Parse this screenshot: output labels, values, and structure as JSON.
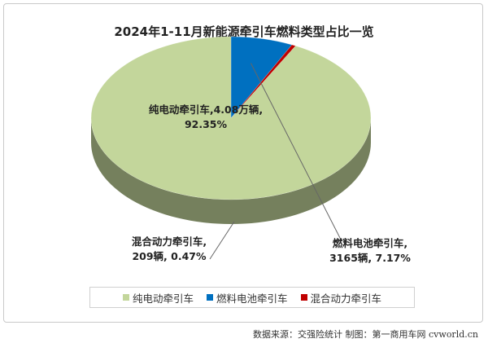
{
  "chart_data": {
    "type": "pie",
    "title": "2024年1-11月新能源牵引车燃料类型占比一览",
    "slices": [
      {
        "name": "纯电动牵引车",
        "label_line1": "纯电动牵引车,4.08万辆,",
        "label_line2": "92.35%",
        "value": 92.35,
        "color": "#c3d69b"
      },
      {
        "name": "燃料电池牵引车",
        "label_line1": "燃料电池牵引车,",
        "label_line2": "3165辆, 7.17%",
        "value": 7.17,
        "color": "#0070c0"
      },
      {
        "name": "混合动力牵引车",
        "label_line1": "混合动力牵引车,",
        "label_line2": "209辆, 0.47%",
        "value": 0.47,
        "color": "#c00000"
      }
    ],
    "legend": [
      "纯电动牵引车",
      "燃料电池牵引车",
      "混合动力牵引车"
    ],
    "legend_position": "bottom",
    "style": "3d"
  },
  "source": "数据来源：交强险统计  制图：第一商用车网 cvworld.cn"
}
